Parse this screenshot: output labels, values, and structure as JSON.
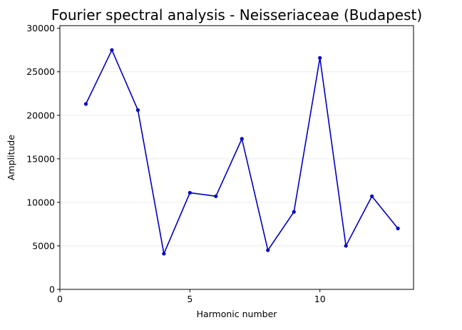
{
  "chart_data": {
    "type": "line",
    "title": "Fourier spectral analysis - Neisseriaceae (Budapest)",
    "xlabel": "Harmonic number",
    "ylabel": "Amplitude",
    "xlim": [
      0,
      13.6
    ],
    "ylim": [
      0,
      30300
    ],
    "x_ticks": [
      0,
      5,
      10
    ],
    "x_tick_labels": [
      "0",
      "5",
      "10"
    ],
    "y_ticks": [
      0,
      5000,
      10000,
      15000,
      20000,
      25000,
      30000
    ],
    "y_tick_labels": [
      "0",
      "5000",
      "10000",
      "15000",
      "20000",
      "25000",
      "30000"
    ],
    "grid": "horizontal",
    "legend": "none",
    "x": [
      1,
      2,
      3,
      4,
      5,
      6,
      7,
      8,
      9,
      10,
      11,
      12,
      13
    ],
    "series": [
      {
        "color": "#0000c0",
        "values": [
          21300,
          27500,
          20600,
          4100,
          11100,
          10700,
          17300,
          4500,
          8900,
          26600,
          5000,
          10700,
          7000
        ]
      }
    ]
  }
}
